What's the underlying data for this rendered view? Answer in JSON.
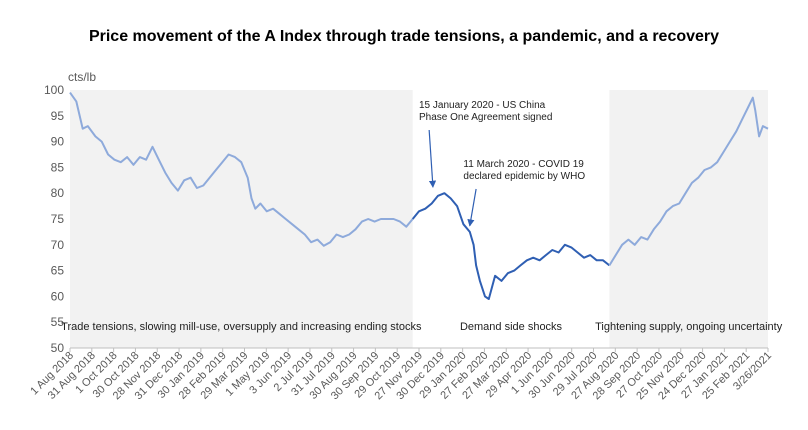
{
  "chart_data": {
    "type": "line",
    "title": "Price movement of the A Index through trade tensions, a pandemic, and a recovery",
    "ylabel": "cts/lb",
    "ylim": [
      50,
      100
    ],
    "yticks": [
      50,
      55,
      60,
      65,
      70,
      75,
      80,
      85,
      90,
      95,
      100
    ],
    "grid": false,
    "x_tick_labels": [
      "1 Aug 2018",
      "31 Aug 2018",
      "1 Oct 2018",
      "30 Oct 2018",
      "28 Nov 2018",
      "31 Dec 2018",
      "30 Jan 2019",
      "28 Feb 2019",
      "29 Mar 2019",
      "1 May 2019",
      "3 Jun 2019",
      "2 Jul 2019",
      "31 Jul 2019",
      "30 Aug 2019",
      "30 Sep 2019",
      "29 Oct 2019",
      "27 Nov 2019",
      "30 Dec 2019",
      "29 Jan 2020",
      "27 Feb 2020",
      "27 Mar 2020",
      "29 Apr 2020",
      "1 Jun 2020",
      "30 Jun 2020",
      "29 Jul 2020",
      "27 Aug 2020",
      "28 Sep 2020",
      "27 Oct 2020",
      "25 Nov 2020",
      "24 Dec 2020",
      "27 Jan 2021",
      "25 Feb 2021",
      "3/26/2021"
    ],
    "series": [
      {
        "color_light": "#8eaadb",
        "color_dark": "#2f5fb3",
        "points": [
          [
            0,
            99.5
          ],
          [
            0.5,
            97.8
          ],
          [
            1,
            92.5
          ],
          [
            1.4,
            93
          ],
          [
            2,
            91
          ],
          [
            2.5,
            90
          ],
          [
            3,
            87.5
          ],
          [
            3.5,
            86.5
          ],
          [
            4,
            86
          ],
          [
            4.5,
            87
          ],
          [
            5,
            85.5
          ],
          [
            5.5,
            87
          ],
          [
            6,
            86.5
          ],
          [
            6.5,
            89
          ],
          [
            7,
            86.5
          ],
          [
            7.5,
            84
          ],
          [
            8,
            82
          ],
          [
            8.5,
            80.5
          ],
          [
            9,
            82.5
          ],
          [
            9.5,
            83
          ],
          [
            10,
            81
          ],
          [
            10.5,
            81.5
          ],
          [
            11,
            83
          ],
          [
            11.5,
            84.5
          ],
          [
            12,
            86
          ],
          [
            12.5,
            87.5
          ],
          [
            13,
            87
          ],
          [
            13.5,
            86
          ],
          [
            14,
            83
          ],
          [
            14.3,
            79
          ],
          [
            14.6,
            77
          ],
          [
            15,
            78
          ],
          [
            15.5,
            76.5
          ],
          [
            16,
            77
          ],
          [
            16.5,
            76
          ],
          [
            17,
            75
          ],
          [
            17.5,
            74
          ],
          [
            18,
            73
          ],
          [
            18.5,
            72
          ],
          [
            19,
            70.5
          ],
          [
            19.5,
            71
          ],
          [
            20,
            69.8
          ],
          [
            20.5,
            70.5
          ],
          [
            21,
            72
          ],
          [
            21.5,
            71.5
          ],
          [
            22,
            72
          ],
          [
            22.5,
            73
          ],
          [
            23,
            74.5
          ],
          [
            23.5,
            75
          ],
          [
            24,
            74.5
          ],
          [
            24.5,
            75
          ],
          [
            25,
            75
          ],
          [
            25.5,
            75
          ],
          [
            26,
            74.5
          ],
          [
            26.5,
            73.5
          ],
          [
            27,
            75
          ]
        ]
      },
      {
        "color_light": "#8eaadb",
        "color_dark": "#2f5fb3",
        "points": [
          [
            27,
            75
          ],
          [
            27.5,
            76.5
          ],
          [
            28,
            77
          ],
          [
            28.5,
            78
          ],
          [
            29,
            79.5
          ],
          [
            29.5,
            80
          ],
          [
            30,
            79
          ],
          [
            30.5,
            77.5
          ],
          [
            31,
            74
          ],
          [
            31.5,
            72.5
          ],
          [
            31.8,
            70
          ],
          [
            32,
            66
          ],
          [
            32.3,
            63
          ],
          [
            32.7,
            60
          ],
          [
            33,
            59.5
          ],
          [
            33.5,
            64
          ],
          [
            34,
            63
          ],
          [
            34.5,
            64.5
          ],
          [
            35,
            65
          ],
          [
            35.5,
            66
          ],
          [
            36,
            67
          ],
          [
            36.5,
            67.5
          ],
          [
            37,
            67
          ],
          [
            37.5,
            68
          ],
          [
            38,
            69
          ],
          [
            38.5,
            68.5
          ],
          [
            39,
            70
          ],
          [
            39.5,
            69.5
          ],
          [
            40,
            68.5
          ],
          [
            40.5,
            67.5
          ],
          [
            41,
            68
          ],
          [
            41.5,
            67
          ],
          [
            42,
            67
          ],
          [
            42.5,
            66
          ]
        ]
      },
      {
        "color_light": "#8eaadb",
        "color_dark": "#2f5fb3",
        "points": [
          [
            42.5,
            66
          ],
          [
            43,
            68
          ],
          [
            43.5,
            70
          ],
          [
            44,
            71
          ],
          [
            44.5,
            70
          ],
          [
            45,
            71.5
          ],
          [
            45.5,
            71
          ],
          [
            46,
            73
          ],
          [
            46.5,
            74.5
          ],
          [
            47,
            76.5
          ],
          [
            47.5,
            77.5
          ],
          [
            48,
            78
          ],
          [
            48.5,
            80
          ],
          [
            49,
            82
          ],
          [
            49.5,
            83
          ],
          [
            50,
            84.5
          ],
          [
            50.5,
            85
          ],
          [
            51,
            86
          ],
          [
            51.5,
            88
          ],
          [
            52,
            90
          ],
          [
            52.5,
            92
          ],
          [
            53,
            94.5
          ],
          [
            53.5,
            97
          ],
          [
            53.8,
            98.5
          ],
          [
            54,
            96
          ],
          [
            54.3,
            91
          ],
          [
            54.6,
            93
          ],
          [
            55,
            92.5
          ]
        ]
      }
    ],
    "x_domain": [
      0,
      55
    ],
    "regions": [
      {
        "label": "Trade tensions, slowing mill-use, oversupply and increasing ending stocks",
        "x_start": 0,
        "x_end": 27,
        "shaded": true
      },
      {
        "label": "Demand side shocks",
        "x_start": 27,
        "x_end": 42.5,
        "shaded": false
      },
      {
        "label": "Tightening supply, ongoing uncertainty",
        "x_start": 42.5,
        "x_end": 55,
        "shaded": true
      }
    ],
    "annotations": [
      {
        "lines": [
          "15 January 2020 - US China",
          "Phase One Agreement signed"
        ],
        "target_x": 28.6,
        "target_y": 80
      },
      {
        "lines": [
          "11 March 2020 - COVID  19",
          "declared epidemic by WHO"
        ],
        "target_x": 31.5,
        "target_y": 72.5
      }
    ]
  }
}
